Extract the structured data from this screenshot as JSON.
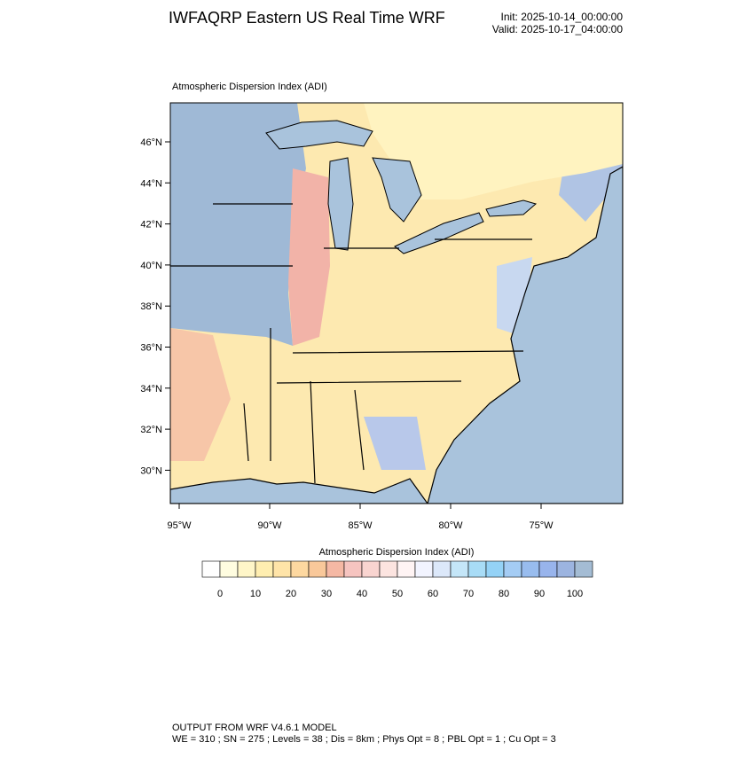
{
  "header": {
    "title": "IWFAQRP Eastern US Real Time WRF",
    "init": "Init: 2025-10-14_00:00:00",
    "valid": "Valid: 2025-10-17_04:00:00"
  },
  "map": {
    "title": "Atmospheric Dispersion Index   (ADI)",
    "lat_labels": [
      {
        "value": 46,
        "label": "46°N"
      },
      {
        "value": 44,
        "label": "44°N"
      },
      {
        "value": 42,
        "label": "42°N"
      },
      {
        "value": 40,
        "label": "40°N"
      },
      {
        "value": 38,
        "label": "38°N"
      },
      {
        "value": 36,
        "label": "36°N"
      },
      {
        "value": 34,
        "label": "34°N"
      },
      {
        "value": 32,
        "label": "32°N"
      },
      {
        "value": 30,
        "label": "30°N"
      }
    ],
    "lon_labels": [
      {
        "value": 95,
        "label": "95°W"
      },
      {
        "value": 90,
        "label": "90°W"
      },
      {
        "value": 85,
        "label": "85°W"
      },
      {
        "value": 80,
        "label": "80°W"
      },
      {
        "value": 75,
        "label": "75°W"
      }
    ]
  },
  "colorbar": {
    "title": "Atmospheric Dispersion Index  (ADI)",
    "ticks": [
      0,
      10,
      20,
      30,
      40,
      50,
      60,
      70,
      80,
      90,
      100
    ],
    "colors": [
      "#ffffff",
      "#fffde0",
      "#fff6c8",
      "#ffeeb0",
      "#ffe4a8",
      "#fdd8a0",
      "#f9c89a",
      "#f5b8a4",
      "#f6c4c0",
      "#f9d4d0",
      "#fce4e0",
      "#fff4f4",
      "#f2f4ff",
      "#dce8fa",
      "#c4e6f8",
      "#a8dcf6",
      "#94d2f6",
      "#a4ccf4",
      "#98bcee",
      "#98b4ec",
      "#9cb4e0",
      "#a4bcd4"
    ]
  },
  "footer": {
    "model": "OUTPUT FROM WRF V4.6.1 MODEL",
    "settings": "WE = 310 ; SN = 275 ; Levels = 38 ; Dis = 8km ; Phys Opt = 8 ; PBL Opt = 1 ; Cu Opt = 3"
  }
}
